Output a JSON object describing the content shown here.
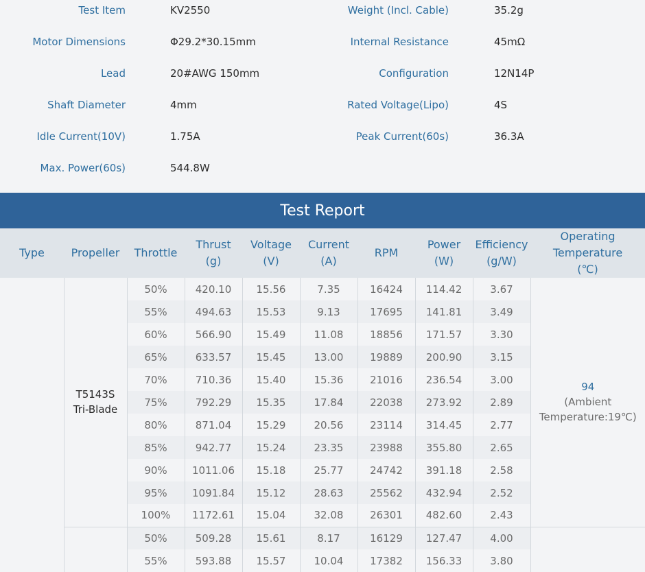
{
  "specs": {
    "left": [
      {
        "label": "Test Item",
        "value": "KV2550"
      },
      {
        "label": "Motor Dimensions",
        "value": "Φ29.2*30.15mm"
      },
      {
        "label": "Lead",
        "value": "20#AWG 150mm"
      },
      {
        "label": "Shaft Diameter",
        "value": "4mm"
      },
      {
        "label": "Idle Current(10V)",
        "value": "1.75A"
      },
      {
        "label": "Max. Power(60s)",
        "value": "544.8W"
      }
    ],
    "right": [
      {
        "label": "Weight (Incl. Cable)",
        "value": "35.2g"
      },
      {
        "label": "Internal Resistance",
        "value": "45mΩ"
      },
      {
        "label": "Configuration",
        "value": "12N14P"
      },
      {
        "label": "Rated Voltage(Lipo)",
        "value": "4S"
      },
      {
        "label": "Peak Current(60s)",
        "value": "36.3A"
      }
    ]
  },
  "report": {
    "title": "Test Report",
    "headers": {
      "type": "Type",
      "propeller": "Propeller",
      "throttle": "Throttle",
      "thrust": [
        "Thrust",
        "(g)"
      ],
      "voltage": [
        "Voltage",
        "(V)"
      ],
      "current": [
        "Current",
        "(A)"
      ],
      "rpm": "RPM",
      "power": [
        "Power",
        "(W)"
      ],
      "efficiency": [
        "Efficiency",
        "(g/W)"
      ],
      "temperature": [
        "Operating",
        "Temperature",
        "(℃)"
      ]
    },
    "groups": [
      {
        "propeller": [
          "T5143S",
          "Tri-Blade"
        ],
        "temperature": [
          "94",
          "(Ambient",
          "Temperature:19℃)"
        ],
        "rows": [
          [
            "50%",
            "420.10",
            "15.56",
            "7.35",
            "16424",
            "114.42",
            "3.67"
          ],
          [
            "55%",
            "494.63",
            "15.53",
            "9.13",
            "17695",
            "141.81",
            "3.49"
          ],
          [
            "60%",
            "566.90",
            "15.49",
            "11.08",
            "18856",
            "171.57",
            "3.30"
          ],
          [
            "65%",
            "633.57",
            "15.45",
            "13.00",
            "19889",
            "200.90",
            "3.15"
          ],
          [
            "70%",
            "710.36",
            "15.40",
            "15.36",
            "21016",
            "236.54",
            "3.00"
          ],
          [
            "75%",
            "792.29",
            "15.35",
            "17.84",
            "22038",
            "273.92",
            "2.89"
          ],
          [
            "80%",
            "871.04",
            "15.29",
            "20.56",
            "23114",
            "314.45",
            "2.77"
          ],
          [
            "85%",
            "942.77",
            "15.24",
            "23.35",
            "23988",
            "355.80",
            "2.65"
          ],
          [
            "90%",
            "1011.06",
            "15.18",
            "25.77",
            "24742",
            "391.18",
            "2.58"
          ],
          [
            "95%",
            "1091.84",
            "15.12",
            "28.63",
            "25562",
            "432.94",
            "2.52"
          ],
          [
            "100%",
            "1172.61",
            "15.04",
            "32.08",
            "26301",
            "482.60",
            "2.43"
          ]
        ]
      },
      {
        "propeller": [],
        "temperature": [],
        "rows": [
          [
            "50%",
            "509.28",
            "15.61",
            "8.17",
            "16129",
            "127.47",
            "4.00"
          ],
          [
            "55%",
            "593.88",
            "15.57",
            "10.04",
            "17382",
            "156.33",
            "3.80"
          ]
        ]
      }
    ]
  }
}
